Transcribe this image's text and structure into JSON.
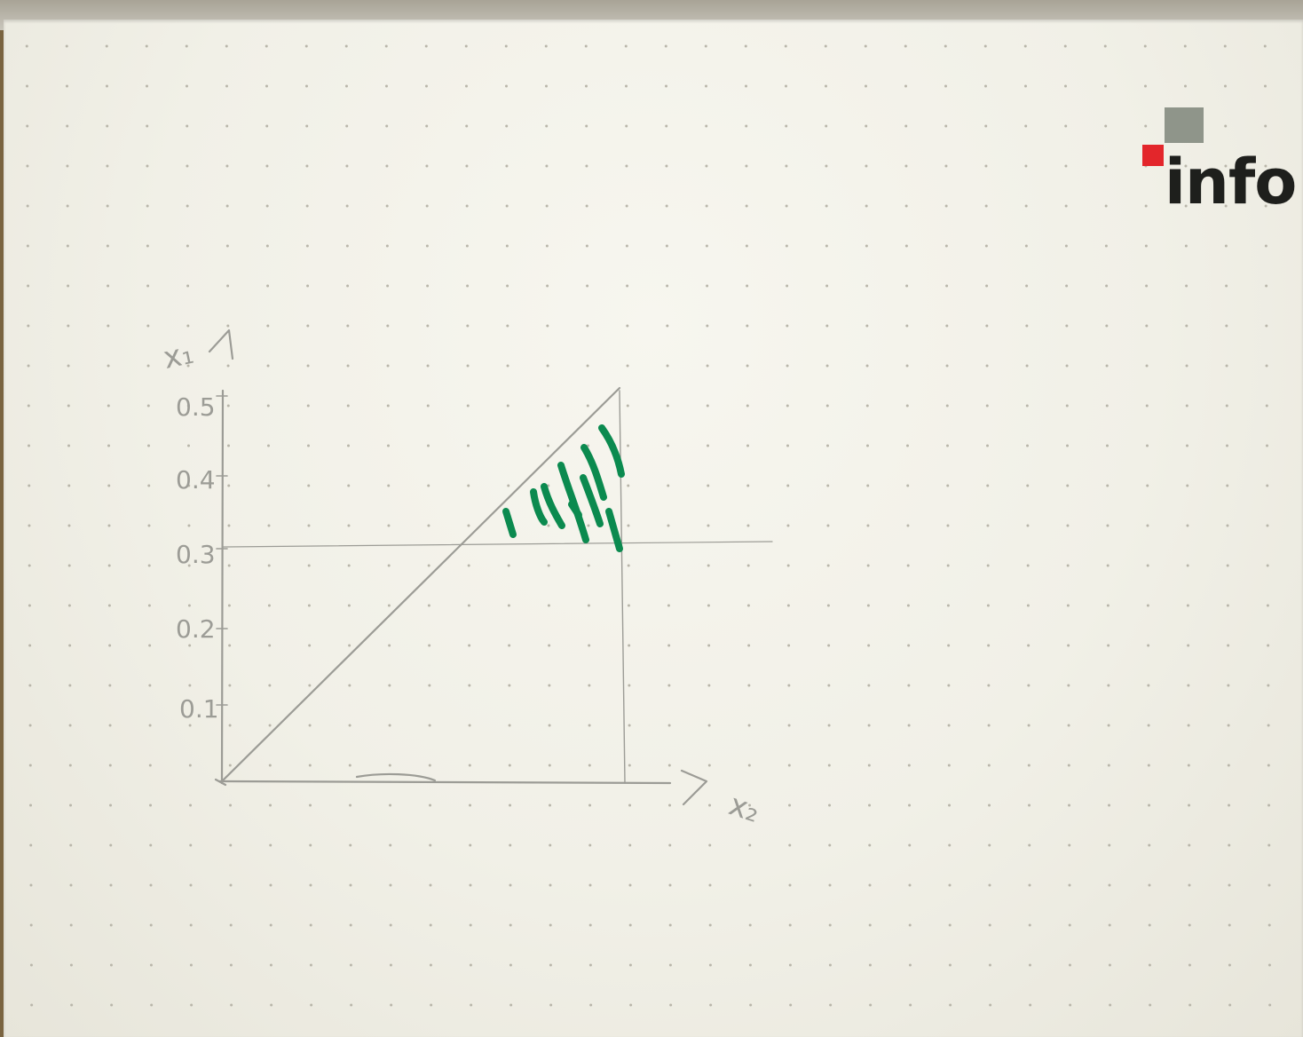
{
  "logo": {
    "text": "info",
    "colors": {
      "grey_square": "#8f958a",
      "red_square": "#e3262b",
      "text": "#1e1f1c"
    }
  },
  "sketch": {
    "y_axis_label": "x₁",
    "x_axis_label": "x₂",
    "y_ticks": [
      "0.5",
      "0.4",
      "0.3",
      "0.2",
      "0.1"
    ],
    "pencil_color": "#9c9c96",
    "marker_color": "#0b8a4f"
  }
}
